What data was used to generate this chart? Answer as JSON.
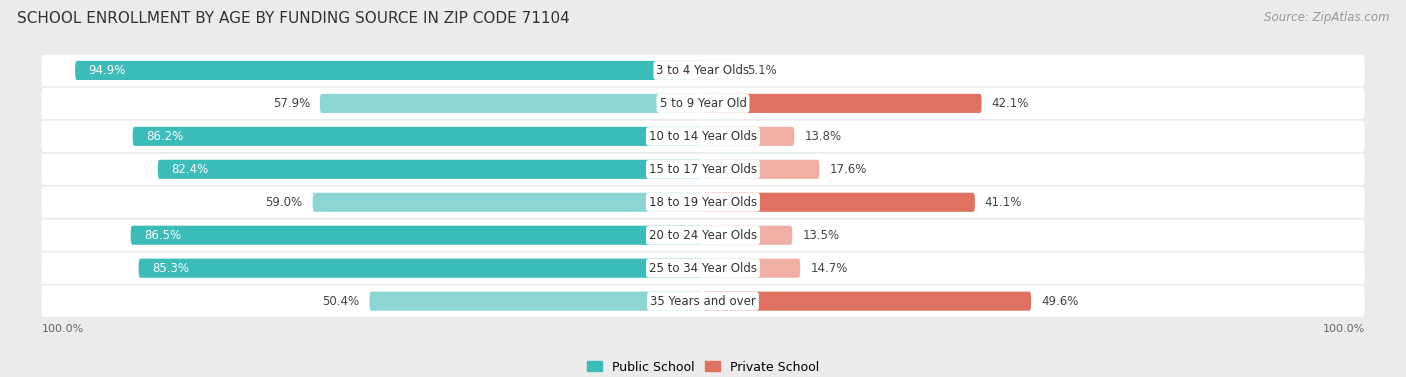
{
  "title": "SCHOOL ENROLLMENT BY AGE BY FUNDING SOURCE IN ZIP CODE 71104",
  "source": "Source: ZipAtlas.com",
  "categories": [
    "3 to 4 Year Olds",
    "5 to 9 Year Old",
    "10 to 14 Year Olds",
    "15 to 17 Year Olds",
    "18 to 19 Year Olds",
    "20 to 24 Year Olds",
    "25 to 34 Year Olds",
    "35 Years and over"
  ],
  "public_values": [
    94.9,
    57.9,
    86.2,
    82.4,
    59.0,
    86.5,
    85.3,
    50.4
  ],
  "private_values": [
    5.1,
    42.1,
    13.8,
    17.6,
    41.1,
    13.5,
    14.7,
    49.6
  ],
  "public_dark_color": "#3BBCB8",
  "public_light_color": "#8DD5D3",
  "private_dark_color": "#E07060",
  "private_light_color": "#F0AFA5",
  "bg_color": "#EBEBEB",
  "row_bg_even": "#F7F7F7",
  "row_bg_odd": "#EFEFEF",
  "row_bg_white": "#FFFFFF",
  "title_fontsize": 11,
  "source_fontsize": 8.5,
  "label_fontsize": 8.5,
  "cat_fontsize": 8.5,
  "bar_height": 0.58,
  "figsize": [
    14.06,
    3.77
  ],
  "xlim_left": -100,
  "xlim_right": 100,
  "public_dark_threshold": 70,
  "private_dark_threshold": 30
}
